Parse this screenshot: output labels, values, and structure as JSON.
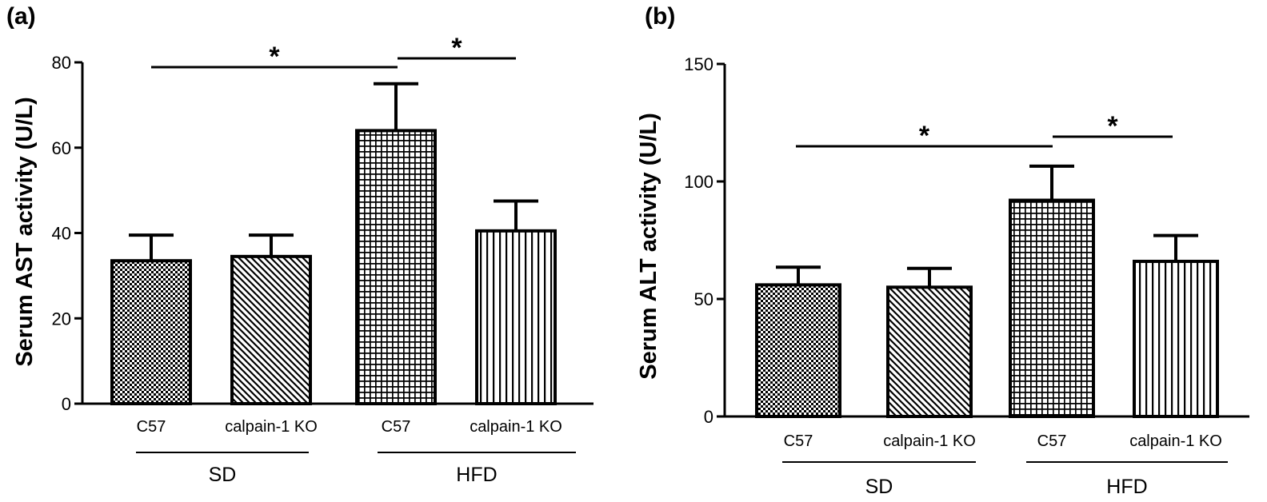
{
  "chart_data": [
    {
      "type": "bar",
      "panel_label": "(a)",
      "ylabel": "Serum AST activity (U/L)",
      "ylim": [
        0,
        80
      ],
      "yticks": [
        "0",
        "20",
        "40",
        "60",
        "80"
      ],
      "categories": [
        "C57",
        "calpain-1 KO",
        "C57",
        "calpain-1 KO"
      ],
      "groups": [
        {
          "label": "SD"
        },
        {
          "label": "HFD"
        }
      ],
      "values": [
        33.5,
        34.5,
        64,
        40.5
      ],
      "errors": [
        6,
        5,
        11,
        7
      ],
      "bar_patterns": [
        "dots",
        "diagonal",
        "grid",
        "vertical"
      ],
      "significance": [
        {
          "label": "*"
        },
        {
          "label": "*"
        }
      ]
    },
    {
      "type": "bar",
      "panel_label": "(b)",
      "ylabel": "Serum ALT activity (U/L)",
      "ylim": [
        0,
        150
      ],
      "yticks": [
        "0",
        "50",
        "100",
        "150"
      ],
      "categories": [
        "C57",
        "calpain-1 KO",
        "C57",
        "calpain-1 KO"
      ],
      "groups": [
        {
          "label": "SD"
        },
        {
          "label": "HFD"
        }
      ],
      "values": [
        56,
        55,
        92,
        66
      ],
      "errors": [
        7.5,
        8,
        14.5,
        11
      ],
      "bar_patterns": [
        "dots",
        "diagonal",
        "grid",
        "vertical"
      ],
      "significance": [
        {
          "label": "*"
        },
        {
          "label": "*"
        }
      ]
    }
  ]
}
